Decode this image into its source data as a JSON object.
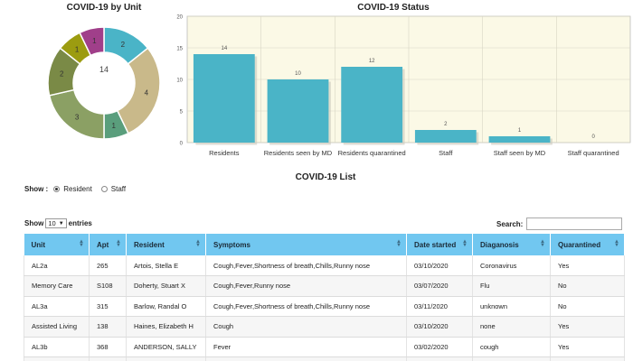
{
  "donut": {
    "title": "COVID-19 by Unit",
    "center_value": "14",
    "chart_data": {
      "type": "pie",
      "values": [
        2,
        4,
        1,
        3,
        2,
        1,
        1
      ],
      "labels": [
        "2",
        "4",
        "1",
        "3",
        "2",
        "1",
        "1"
      ],
      "colors": [
        "#4ab4c7",
        "#c9b98a",
        "#5a9e7c",
        "#8ba064",
        "#7a8a46",
        "#9c9c10",
        "#a03f8a"
      ]
    }
  },
  "bar": {
    "title": "COVID-19 Status",
    "chart_data": {
      "type": "bar",
      "categories": [
        "Residents",
        "Residents seen by MD",
        "Residents quarantined",
        "Staff",
        "Staff seen by MD",
        "Staff quarantined"
      ],
      "values": [
        14,
        10,
        12,
        2,
        1,
        0
      ],
      "ylim": [
        0,
        20
      ],
      "yticks": [
        0,
        5,
        10,
        15,
        20
      ],
      "bar_color": "#4ab4c7",
      "grid": true
    }
  },
  "list": {
    "title": "COVID-19 List",
    "show_label": "Show :",
    "radio_resident": "Resident",
    "radio_staff": "Staff",
    "entries_prefix": "Show",
    "entries_value": "10",
    "entries_suffix": "entries",
    "search_label": "Search:",
    "search_value": "",
    "columns": [
      "Unit",
      "Apt",
      "Resident",
      "Symptoms",
      "Date started",
      "Diaganosis",
      "Quarantined"
    ],
    "rows": [
      [
        "AL2a",
        "265",
        "Artois, Stella E",
        "Cough,Fever,Shortness of breath,Chills,Runny nose",
        "03/10/2020",
        "Coronavirus",
        "Yes"
      ],
      [
        "Memory Care",
        "S108",
        "Doherty, Stuart X",
        "Cough,Fever,Runny nose",
        "03/07/2020",
        "Flu",
        "No"
      ],
      [
        "AL3a",
        "315",
        "Barlow, Randal O",
        "Cough,Fever,Shortness of breath,Chills,Runny nose",
        "03/11/2020",
        "unknown",
        "No"
      ],
      [
        "Assisted Living",
        "138",
        "Haines, Elizabeth H",
        "Cough",
        "03/10/2020",
        "none",
        "Yes"
      ],
      [
        "AL3b",
        "368",
        "ANDERSON, SALLY",
        "Fever",
        "03/02/2020",
        "cough",
        "Yes"
      ],
      [
        "",
        "",
        "",
        "",
        "",
        "",
        ""
      ]
    ]
  }
}
